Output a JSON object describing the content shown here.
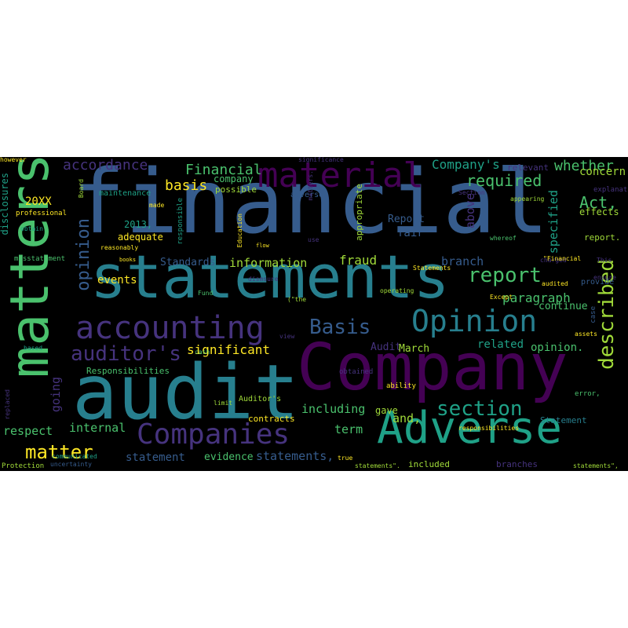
{
  "palette": {
    "background": "#000000",
    "dark_purple": "#440154",
    "indigo": "#46337e",
    "blue": "#365c8d",
    "teal": "#277f8e",
    "green_teal": "#1fa187",
    "green": "#4ac16d",
    "yellow": "#fde725",
    "yellow_green": "#a0da39"
  },
  "words": [
    {
      "text": "financial",
      "color": "#365c8d"
    },
    {
      "text": "statements",
      "color": "#277f8e"
    },
    {
      "text": "Company",
      "color": "#440154"
    },
    {
      "text": "audit",
      "color": "#277f8e"
    },
    {
      "text": "matters",
      "color": "#4ac16d"
    },
    {
      "text": "Adverse",
      "color": "#1fa187"
    },
    {
      "text": "accounting",
      "color": "#46337e"
    },
    {
      "text": "Opinion",
      "color": "#277f8e"
    },
    {
      "text": "material",
      "color": "#440154"
    },
    {
      "text": "Companies",
      "color": "#46337e"
    },
    {
      "text": "described",
      "color": "#a0da39"
    },
    {
      "text": "report",
      "color": "#4ac16d"
    },
    {
      "text": "section",
      "color": "#1fa187"
    },
    {
      "text": "auditor's",
      "color": "#46337e"
    },
    {
      "text": "Basis",
      "color": "#365c8d"
    },
    {
      "text": "opinion",
      "color": "#365c8d"
    },
    {
      "text": "matter",
      "color": "#fde725"
    },
    {
      "text": "accordance",
      "color": "#46337e"
    },
    {
      "text": "required",
      "color": "#4ac16d"
    },
    {
      "text": "Act,",
      "color": "#4ac16d"
    },
    {
      "text": "whether",
      "color": "#4ac16d"
    },
    {
      "text": "Company's",
      "color": "#1fa187"
    },
    {
      "text": "Financial",
      "color": "#4ac16d"
    },
    {
      "text": "basis",
      "color": "#fde725"
    },
    {
      "text": "paragraph",
      "color": "#4ac16d"
    },
    {
      "text": "going",
      "color": "#46337e"
    },
    {
      "text": "significant",
      "color": "#fde725"
    },
    {
      "text": "including",
      "color": "#4ac16d"
    },
    {
      "text": "information",
      "color": "#a0da39"
    },
    {
      "text": "fraud",
      "color": "#a0da39"
    },
    {
      "text": "branch",
      "color": "#365c8d"
    },
    {
      "text": "specified",
      "color": "#1fa187"
    },
    {
      "text": "above",
      "color": "#46337e"
    },
    {
      "text": "Report",
      "color": "#365c8d"
    },
    {
      "text": "fair",
      "color": "#365c8d"
    },
    {
      "text": "internal",
      "color": "#4ac16d"
    },
    {
      "text": "respect",
      "color": "#4ac16d"
    },
    {
      "text": "term",
      "color": "#4ac16d"
    },
    {
      "text": "and,",
      "color": "#a0da39"
    },
    {
      "text": "statements,",
      "color": "#365c8d"
    },
    {
      "text": "statement",
      "color": "#365c8d"
    },
    {
      "text": "evidence",
      "color": "#4ac16d"
    },
    {
      "text": "Audit",
      "color": "#46337e"
    },
    {
      "text": "March",
      "color": "#a0da39"
    },
    {
      "text": "related",
      "color": "#1fa187"
    },
    {
      "text": "opinion.",
      "color": "#4ac16d"
    },
    {
      "text": "continue",
      "color": "#4ac16d"
    },
    {
      "text": "concern",
      "color": "#a0da39"
    },
    {
      "text": "effects",
      "color": "#a0da39"
    },
    {
      "text": "Standards",
      "color": "#365c8d"
    },
    {
      "text": "events",
      "color": "#fde725"
    },
    {
      "text": "20XX",
      "color": "#fde725"
    },
    {
      "text": "2013,",
      "color": "#1fa187"
    },
    {
      "text": "adequate",
      "color": "#fde725"
    },
    {
      "text": "disclosures",
      "color": "#1fa187"
    },
    {
      "text": "company",
      "color": "#4ac16d"
    },
    {
      "text": "possible",
      "color": "#a0da39"
    },
    {
      "text": "maintenance",
      "color": "#1fa187"
    },
    {
      "text": "adverse",
      "color": "#365c8d"
    },
    {
      "text": "appropriate",
      "color": "#a0da39"
    },
    {
      "text": "relevant",
      "color": "#46337e"
    },
    {
      "text": "Responsibilities",
      "color": "#4ac16d"
    },
    {
      "text": "gave",
      "color": "#a0da39"
    },
    {
      "text": "contracts",
      "color": "#fde725"
    },
    {
      "text": "included",
      "color": "#a0da39"
    },
    {
      "text": "branches",
      "color": "#46337e"
    },
    {
      "text": "Statement",
      "color": "#277f8e"
    },
    {
      "text": "report.",
      "color": "#a0da39"
    },
    {
      "text": "explanations",
      "color": "#46337e"
    },
    {
      "text": "provide",
      "color": "#365c8d"
    },
    {
      "text": "case",
      "color": "#365c8d"
    },
    {
      "text": "responsible",
      "color": "#1fa187"
    },
    {
      "text": "professional",
      "color": "#fde725"
    },
    {
      "text": "misstatement",
      "color": "#4ac16d"
    },
    {
      "text": "reasonably",
      "color": "#fde725"
    },
    {
      "text": "Education",
      "color": "#fde725"
    },
    {
      "text": "responsibilities",
      "color": "#fde725"
    },
    {
      "text": "Protection",
      "color": "#a0da39"
    },
    {
      "text": "uncertainty",
      "color": "#365c8d"
    },
    {
      "text": "statements\".",
      "color": "#a0da39"
    },
    {
      "text": "Auditor's",
      "color": "#a0da39"
    },
    {
      "text": "obtained",
      "color": "#46337e"
    },
    {
      "text": "operating",
      "color": "#a0da39"
    },
    {
      "text": "ability",
      "color": "#fde725"
    },
    {
      "text": "significance",
      "color": "#46337e"
    },
    {
      "text": "matters.",
      "color": "#46337e"
    },
    {
      "text": "Section",
      "color": "#46337e"
    },
    {
      "text": "Statements",
      "color": "#fde725"
    },
    {
      "text": "appearing",
      "color": "#a0da39"
    },
    {
      "text": "charged",
      "color": "#46337e"
    },
    {
      "text": "audited",
      "color": "#fde725"
    },
    {
      "text": "error,",
      "color": "#4ac16d"
    },
    {
      "text": "assets",
      "color": "#fde725"
    },
    {
      "text": "books",
      "color": "#fde725"
    },
    {
      "text": "made",
      "color": "#fde725"
    },
    {
      "text": "Board",
      "color": "#a0da39"
    },
    {
      "text": "based",
      "color": "#1fa187"
    },
    {
      "text": "\"Financial",
      "color": "#fde725"
    },
    {
      "text": "Except",
      "color": "#fde725"
    },
    {
      "text": "true",
      "color": "#fde725"
    },
    {
      "text": "statements\",",
      "color": "#a0da39"
    },
    {
      "text": "replaced",
      "color": "#46337e"
    },
    {
      "text": "communicated",
      "color": "#1fa187"
    },
    {
      "text": "Fund",
      "color": "#4ac16d"
    },
    {
      "text": "cash",
      "color": "#4ac16d"
    },
    {
      "text": "limit",
      "color": "#a0da39"
    },
    {
      "text": "flow",
      "color": "#fde725"
    },
    {
      "text": "view",
      "color": "#46337e"
    },
    {
      "text": "obtain",
      "color": "#1fa187"
    },
    {
      "text": "ensure",
      "color": "#46337e"
    },
    {
      "text": "This",
      "color": "#46337e"
    },
    {
      "text": "(\"the",
      "color": "#a0da39"
    },
    {
      "text": "use",
      "color": "#46337e"
    },
    {
      "text": "whereof",
      "color": "#4ac16d"
    },
    {
      "text": "dismsure",
      "color": "#46337e"
    },
    {
      "text": "however",
      "color": "#fde725"
    }
  ]
}
